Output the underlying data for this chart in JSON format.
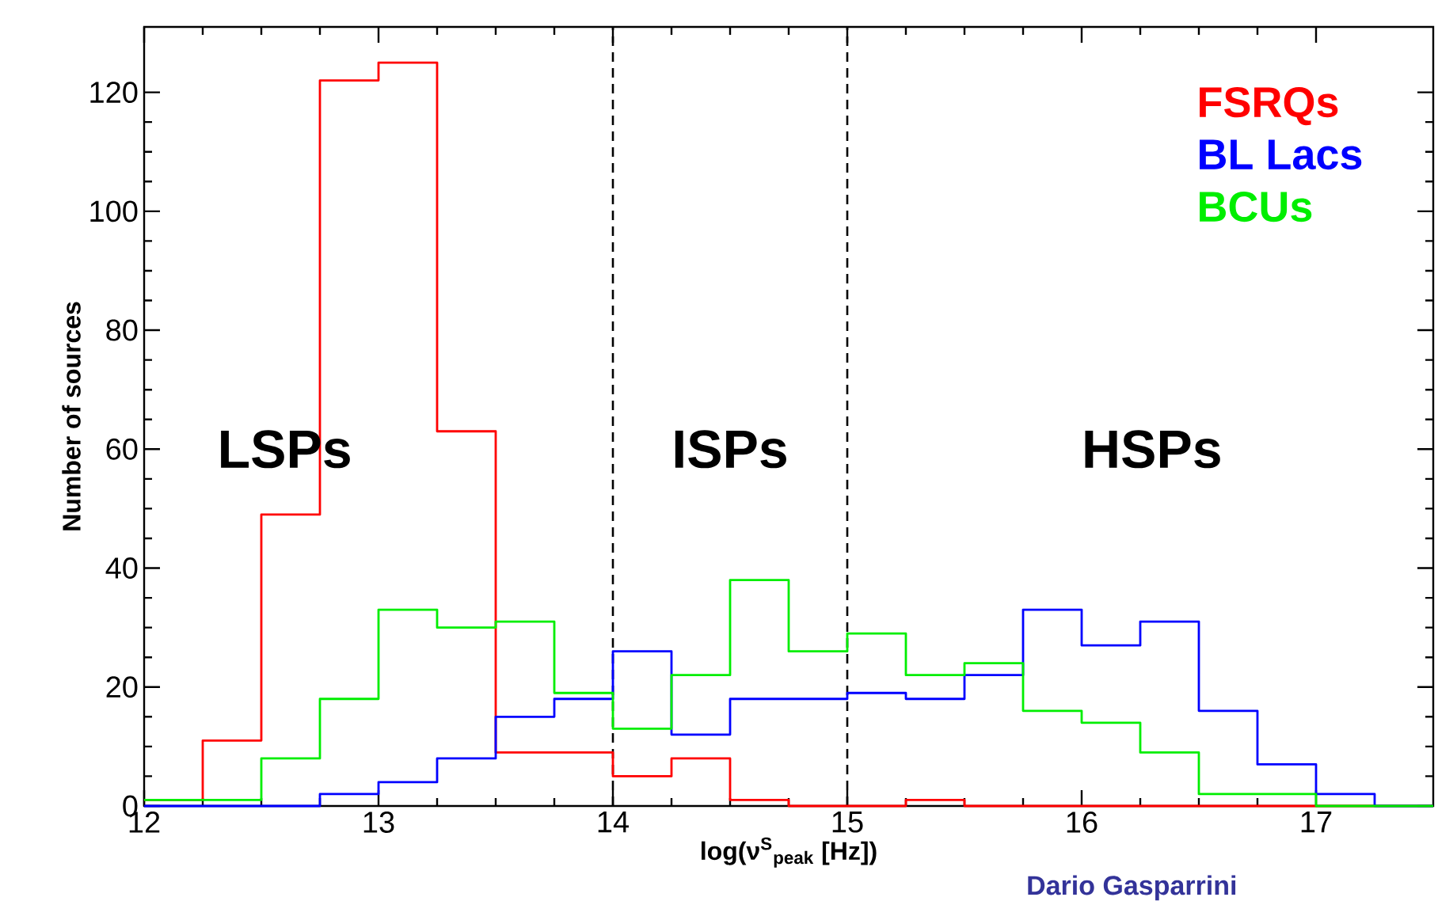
{
  "chart_data": {
    "type": "histogram",
    "xlabel": "log(ν$^{S}$$_{peak}$ [Hz])",
    "ylabel": "Number of sources",
    "bins": [
      12.0,
      12.25,
      12.5,
      12.75,
      13.0,
      13.25,
      13.5,
      13.75,
      14.0,
      14.25,
      14.5,
      14.75,
      15.0,
      15.25,
      15.5,
      15.75,
      16.0,
      16.25,
      16.5,
      16.75,
      17.0,
      17.25,
      17.5
    ],
    "series": [
      {
        "name": "FSRQs",
        "color": "#ff0000",
        "values": [
          1,
          11,
          49,
          122,
          125,
          63,
          9,
          9,
          5,
          8,
          1,
          0,
          0,
          1,
          0,
          0,
          0,
          0,
          0,
          0,
          0,
          0
        ]
      },
      {
        "name": "BL Lacs",
        "color": "#0000ff",
        "values": [
          0,
          0,
          0,
          2,
          4,
          8,
          15,
          18,
          26,
          12,
          18,
          18,
          19,
          18,
          22,
          33,
          27,
          31,
          16,
          7,
          2,
          0
        ]
      },
      {
        "name": "BCUs",
        "color": "#00ee00",
        "values": [
          1,
          1,
          8,
          18,
          33,
          30,
          31,
          19,
          13,
          22,
          38,
          26,
          29,
          22,
          24,
          16,
          14,
          9,
          2,
          2,
          0,
          0
        ]
      }
    ],
    "xlim": [
      12,
      17.5
    ],
    "ylim": [
      0,
      131
    ],
    "xticks": [
      12,
      13,
      14,
      15,
      16,
      17
    ],
    "yticks": [
      0,
      20,
      40,
      60,
      80,
      100,
      120
    ],
    "ref_lines": [
      {
        "axis": "x",
        "value": 14,
        "color": "#000000",
        "line_style": "dashed"
      },
      {
        "axis": "x",
        "value": 15,
        "color": "#000000",
        "line_style": "dashed"
      }
    ],
    "legend": "top right",
    "annotations": [
      "LSPs",
      "ISPs",
      "HSPs",
      "Dario Gasparrini"
    ]
  }
}
